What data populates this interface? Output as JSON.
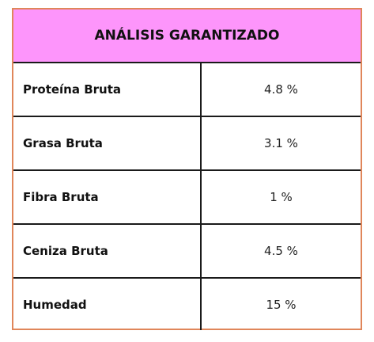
{
  "table": {
    "title": "ANÁLISIS GARANTIZADO",
    "rows": [
      [
        "Proteína Bruta",
        "4.8 %"
      ],
      [
        "Grasa Bruta",
        "3.1 %"
      ],
      [
        "Fibra Bruta",
        "1 %"
      ],
      [
        "Ceniza Bruta",
        "4.5 %"
      ],
      [
        "Humedad",
        "15 %"
      ]
    ]
  }
}
